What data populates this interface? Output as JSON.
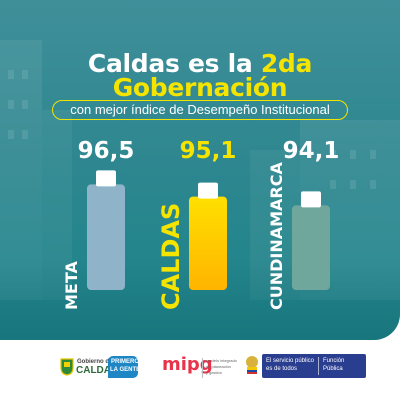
{
  "title": {
    "line1_prefix": "Caldas es la ",
    "line1_highlight": "2da",
    "line2": "Gobernación",
    "subtitle": "con mejor índice de Desempeño Institucional"
  },
  "colors": {
    "background": "#2f8790",
    "accent_yellow": "#f5e400",
    "meta_bar": "#8fb3c9",
    "caldas_bar": "#ffd400",
    "cundinamarca_bar": "#6fa79d"
  },
  "chart_data": {
    "type": "bar",
    "categories": [
      "META",
      "CALDAS",
      "CUNDINAMARCA"
    ],
    "values": [
      96.5,
      95.1,
      94.1
    ],
    "value_labels": [
      "96,5",
      "95,1",
      "94,1"
    ],
    "highlight": "CALDAS",
    "title": "",
    "xlabel": "",
    "ylabel": ""
  },
  "footer": {
    "logos": [
      {
        "name": "gobierno-de-caldas",
        "line1": "Gobierno de",
        "line2": "CALDAS"
      },
      {
        "name": "primero-la-gente",
        "line1": "PRIMERO",
        "line2": "LA GENTE"
      },
      {
        "name": "mipg",
        "text": "mipg",
        "caption_1": "modelo integrado",
        "caption_2": "de planeación",
        "caption_3": "y gestión"
      },
      {
        "name": "funcion-publica",
        "line1": "El servicio público",
        "line2": "es de todos",
        "badge_1": "Función",
        "badge_2": "Pública"
      }
    ]
  }
}
